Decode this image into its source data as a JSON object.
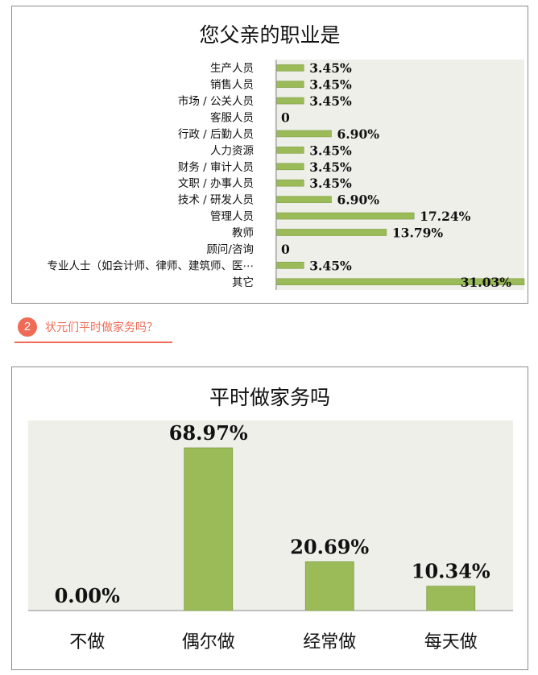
{
  "section": {
    "number": "2",
    "title": "状元们平时做家务吗？"
  },
  "colors": {
    "bar": "#9bbb59",
    "bar_stroke": "#7f9f45",
    "plot_bg": "#efefe9",
    "accent": "#f06b55"
  },
  "chart_data": [
    {
      "type": "bar",
      "orientation": "horizontal",
      "title": "您父亲的职业是",
      "categories": [
        "生产人员",
        "销售人员",
        "市场 / 公关人员",
        "客服人员",
        "行政 / 后勤人员",
        "人力资源",
        "财务 / 审计人员",
        "文职 / 办事人员",
        "技术 / 研发人员",
        "管理人员",
        "教师",
        "顾问/咨询",
        "专业人士（如会计师、律师、建筑师、医⋯",
        "其它"
      ],
      "values": [
        3.45,
        3.45,
        3.45,
        0,
        6.9,
        3.45,
        3.45,
        3.45,
        6.9,
        17.24,
        13.79,
        0,
        3.45,
        31.03
      ],
      "value_labels": [
        "3.45%",
        "3.45%",
        "3.45%",
        "0",
        "6.90%",
        "3.45%",
        "3.45%",
        "3.45%",
        "6.90%",
        "17.24%",
        "13.79%",
        "0",
        "3.45%",
        "31.03%"
      ],
      "xlim": [
        0,
        31.03
      ],
      "grid": false
    },
    {
      "type": "bar",
      "orientation": "vertical",
      "title": "平时做家务吗",
      "categories": [
        "不做",
        "偶尔做",
        "经常做",
        "每天做"
      ],
      "values": [
        0.0,
        68.97,
        20.69,
        10.34
      ],
      "value_labels": [
        "0.00%",
        "68.97%",
        "20.69%",
        "10.34%"
      ],
      "ylim": [
        0,
        75
      ],
      "grid": false
    }
  ]
}
